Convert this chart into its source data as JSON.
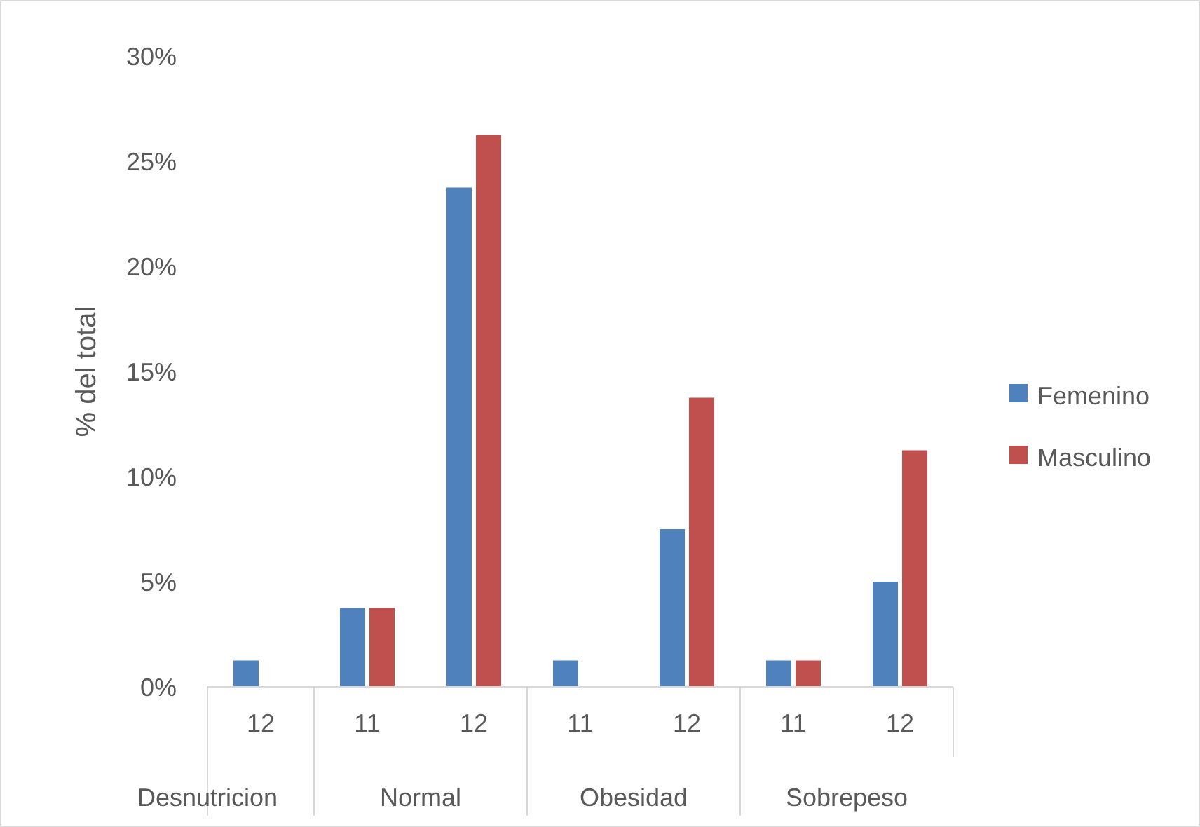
{
  "chart_data": {
    "type": "bar",
    "ylabel": "% del total",
    "categories": [
      "12",
      "11",
      "12",
      "11",
      "12",
      "11",
      "12"
    ],
    "annotations": [
      "Desnutricion",
      "Normal",
      "Obesidad",
      "Sobrepeso"
    ],
    "series": [
      {
        "name": "Femenino",
        "color": "#4f81bd",
        "values": [
          1.25,
          3.75,
          23.75,
          1.25,
          7.5,
          1.25,
          5
        ]
      },
      {
        "name": "Masculino",
        "color": "#c0504d",
        "values": [
          0,
          3.75,
          26.25,
          0,
          13.75,
          1.25,
          11.25
        ]
      }
    ],
    "ylim": [
      0,
      30
    ],
    "yticks": [
      {
        "value": 0,
        "label": "0%"
      },
      {
        "value": 5,
        "label": "5%"
      },
      {
        "value": 10,
        "label": "10%"
      },
      {
        "value": 15,
        "label": "15%"
      },
      {
        "value": 20,
        "label": "20%"
      },
      {
        "value": 25,
        "label": "25%"
      },
      {
        "value": 30,
        "label": "30%"
      }
    ],
    "legend": "right",
    "grid": false
  }
}
